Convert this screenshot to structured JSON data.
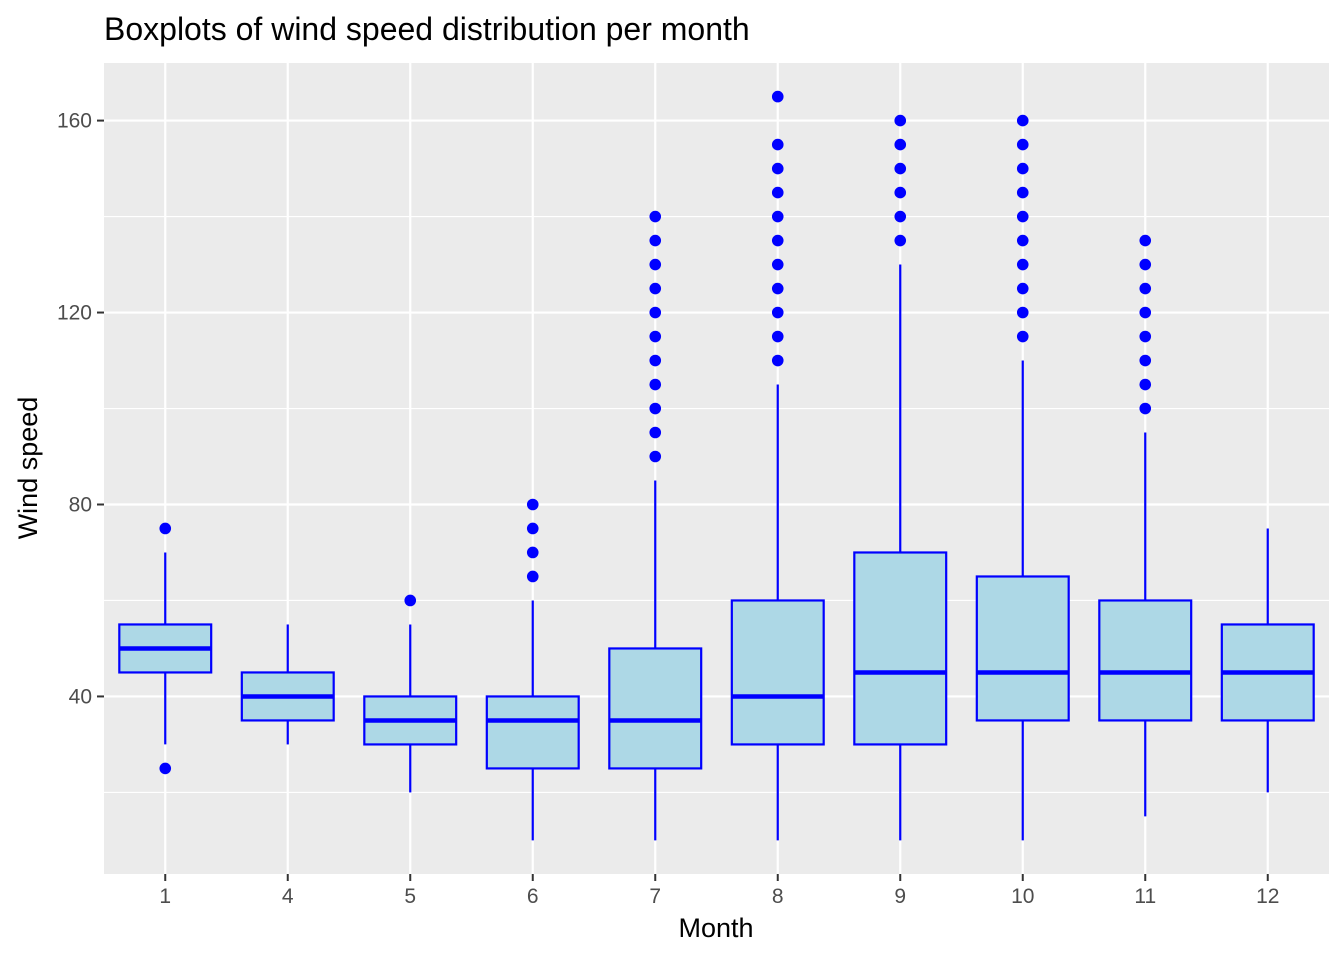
{
  "chart_data": {
    "type": "boxplot",
    "title": "Boxplots of wind speed distribution per month",
    "xlabel": "Month",
    "ylabel": "Wind speed",
    "ylim": [
      3,
      172
    ],
    "y_ticks": [
      40,
      80,
      120,
      160
    ],
    "y_minor_ticks": [
      20,
      60,
      100,
      140
    ],
    "grid": true,
    "categories": [
      "1",
      "4",
      "5",
      "6",
      "7",
      "8",
      "9",
      "10",
      "11",
      "12"
    ],
    "boxes": [
      {
        "month": "1",
        "whisker_low": 30,
        "q1": 45,
        "median": 50,
        "q3": 55,
        "whisker_high": 70,
        "outliers": [
          25,
          75
        ]
      },
      {
        "month": "4",
        "whisker_low": 30,
        "q1": 35,
        "median": 40,
        "q3": 45,
        "whisker_high": 55,
        "outliers": []
      },
      {
        "month": "5",
        "whisker_low": 20,
        "q1": 30,
        "median": 35,
        "q3": 40,
        "whisker_high": 55,
        "outliers": [
          60
        ]
      },
      {
        "month": "6",
        "whisker_low": 10,
        "q1": 25,
        "median": 35,
        "q3": 40,
        "whisker_high": 60,
        "outliers": [
          65,
          70,
          75,
          80
        ]
      },
      {
        "month": "7",
        "whisker_low": 10,
        "q1": 25,
        "median": 35,
        "q3": 50,
        "whisker_high": 85,
        "outliers": [
          90,
          95,
          100,
          105,
          110,
          115,
          120,
          125,
          130,
          135,
          140
        ]
      },
      {
        "month": "8",
        "whisker_low": 10,
        "q1": 30,
        "median": 40,
        "q3": 60,
        "whisker_high": 105,
        "outliers": [
          110,
          115,
          120,
          125,
          130,
          135,
          140,
          145,
          150,
          155,
          165
        ]
      },
      {
        "month": "9",
        "whisker_low": 10,
        "q1": 30,
        "median": 45,
        "q3": 70,
        "whisker_high": 130,
        "outliers": [
          135,
          140,
          145,
          150,
          155,
          160
        ]
      },
      {
        "month": "10",
        "whisker_low": 10,
        "q1": 35,
        "median": 45,
        "q3": 65,
        "whisker_high": 110,
        "outliers": [
          115,
          120,
          125,
          130,
          135,
          140,
          145,
          150,
          155,
          160
        ]
      },
      {
        "month": "11",
        "whisker_low": 15,
        "q1": 35,
        "median": 45,
        "q3": 60,
        "whisker_high": 95,
        "outliers": [
          100,
          105,
          110,
          115,
          120,
          125,
          130,
          135
        ]
      },
      {
        "month": "12",
        "whisker_low": 20,
        "q1": 35,
        "median": 45,
        "q3": 55,
        "whisker_high": 75,
        "outliers": []
      }
    ],
    "colors": {
      "box_fill": "#add8e6",
      "box_outline": "#0000ff",
      "outlier": "#0000ff",
      "panel_background": "#ebebeb",
      "grid": "#ffffff"
    }
  }
}
